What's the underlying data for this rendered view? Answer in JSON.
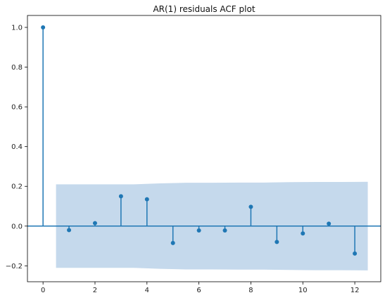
{
  "chart_data": {
    "type": "stem",
    "title": "AR(1) residuals ACF plot",
    "xlabel": "",
    "ylabel": "",
    "xlim": [
      -0.6,
      13.0
    ],
    "ylim": [
      -0.28,
      1.06
    ],
    "xticks": [
      0,
      2,
      4,
      6,
      8,
      10,
      12
    ],
    "yticks": [
      -0.2,
      0.0,
      0.2,
      0.4,
      0.6,
      0.8,
      1.0
    ],
    "ytick_labels": [
      "−0.2",
      "0.0",
      "0.2",
      "0.4",
      "0.6",
      "0.8",
      "1.0"
    ],
    "series": [
      {
        "lags": [
          0,
          1,
          2,
          3,
          4,
          5,
          6,
          7,
          8,
          9,
          10,
          11,
          12
        ],
        "values": [
          1.0,
          -0.02,
          0.015,
          0.15,
          0.135,
          -0.085,
          -0.022,
          -0.022,
          0.097,
          -0.08,
          -0.037,
          0.012,
          -0.138
        ]
      }
    ],
    "confidence_band": {
      "lags": [
        0.5,
        1.5,
        2.5,
        3.5,
        4.5,
        5.5,
        6.5,
        7.5,
        8.5,
        9.5,
        10.5,
        11.5,
        12.5
      ],
      "upper": [
        0.21,
        0.21,
        0.21,
        0.21,
        0.215,
        0.218,
        0.218,
        0.219,
        0.219,
        0.221,
        0.222,
        0.222,
        0.223
      ],
      "lower": [
        -0.21,
        -0.21,
        -0.21,
        -0.21,
        -0.215,
        -0.218,
        -0.218,
        -0.219,
        -0.219,
        -0.221,
        -0.222,
        -0.222,
        -0.223
      ]
    },
    "colors": {
      "stem": "#1f77b4",
      "band": "#c5d9ec",
      "axis": "#000000"
    },
    "grid": false,
    "legend": false
  }
}
